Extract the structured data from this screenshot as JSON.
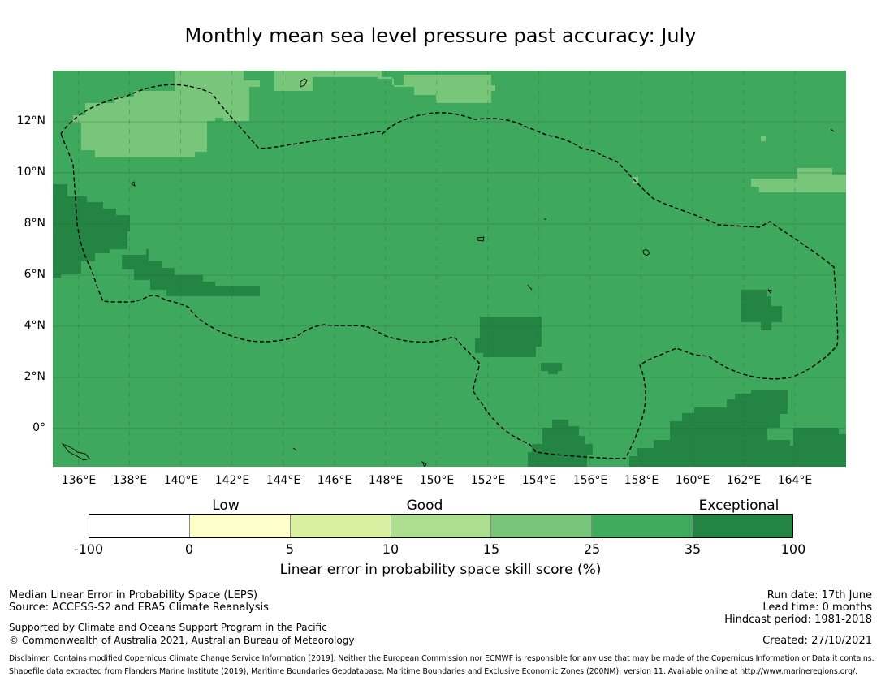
{
  "title": "Monthly mean sea level pressure past accuracy: July",
  "colors": {
    "background": "#3ea85c",
    "good_light": "#78c679",
    "good_dark": "#238443",
    "boundary_line": "#000000",
    "grid_line": "#2a6b3a"
  },
  "map": {
    "lat_labels": [
      "12°N",
      "10°N",
      "8°N",
      "6°N",
      "4°N",
      "2°N",
      "0°"
    ],
    "lon_labels": [
      "136°E",
      "138°E",
      "140°E",
      "142°E",
      "144°E",
      "146°E",
      "148°E",
      "150°E",
      "152°E",
      "154°E",
      "156°E",
      "158°E",
      "160°E",
      "162°E",
      "164°E"
    ],
    "extent": {
      "lon_min": 135,
      "lon_max": 166,
      "lat_min": -1.5,
      "lat_max": 14
    }
  },
  "colorbar": {
    "headings": [
      "Low",
      "Good",
      "Exceptional"
    ],
    "ticks": [
      "-100",
      "0",
      "5",
      "10",
      "15",
      "25",
      "35",
      "100"
    ],
    "colors": [
      "#ffffff",
      "#ffffcc",
      "#d9f0a3",
      "#addd8e",
      "#78c679",
      "#41ab5d",
      "#238443"
    ],
    "title": "Linear error in probability space skill score (%)"
  },
  "footer": {
    "line1": "Median Linear Error in Probability Space (LEPS)",
    "line2": "Source: ACCESS-S2 and ERA5 Climate Reanalysis",
    "line3": "Supported by Climate and Oceans Support Program in the Pacific",
    "line4": "© Commonwealth of Australia 2021, Australian Bureau of Meteorology",
    "run_date": "Run date: 17th June",
    "lead_time": "Lead time: 0 months",
    "hindcast": "Hindcast period: 1981-2018",
    "created": "Created: 27/10/2021",
    "disclaimer1": "Disclaimer: Contains modified Copernicus Climate Change Service Information [2019]. Neither the European Commission nor ECMWF is responsible for any use that may be made of the Copernicus Information or Data it contains.",
    "disclaimer2": "Shapefile data extracted from Flanders Marine Institute (2019), Maritime Boundaries Geodatabase: Maritime Boundaries and Exclusive Economic Zones (200NM), version 11. Available online at http://www.marineregions.org/."
  }
}
